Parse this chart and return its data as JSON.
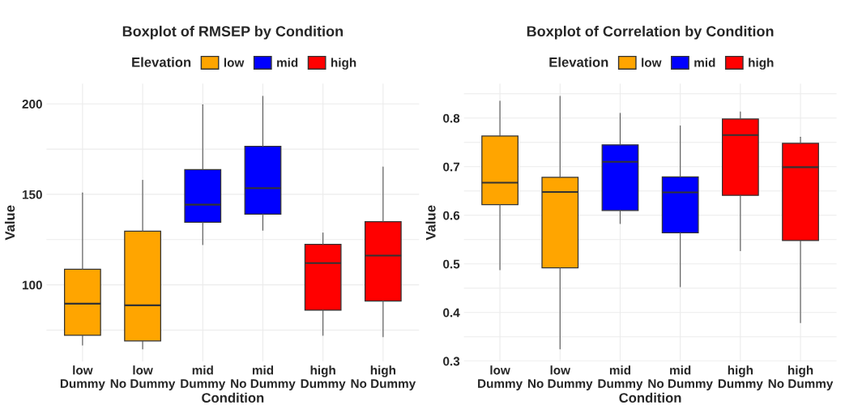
{
  "chart_data": [
    {
      "type": "box",
      "title": "Boxplot of RMSEP by Condition",
      "xlabel": "Condition",
      "ylabel": "Value",
      "legend_title": "Elevation",
      "legend": "top",
      "grid": true,
      "categories": [
        "low\nDummy",
        "low\nNo Dummy",
        "mid\nDummy",
        "mid\nNo Dummy",
        "high\nDummy",
        "high\nNo Dummy"
      ],
      "ylim": [
        57.6,
        211.2
      ],
      "yticks": [
        {
          "value": 75,
          "label": null
        },
        100,
        {
          "value": 125,
          "label": null
        },
        150,
        {
          "value": 175,
          "label": null
        },
        200
      ],
      "series": [
        {
          "name": "low",
          "color": "#ffa500",
          "boxes": [
            {
              "low": 66.7,
              "q1": 72.1,
              "median": 89.6,
              "q3": 108.6,
              "high": 150.8
            },
            {
              "low": 64.6,
              "q1": 69.0,
              "median": 88.7,
              "q3": 129.6,
              "high": 157.8
            },
            null,
            null,
            null,
            null
          ]
        },
        {
          "name": "mid",
          "color": "#0000ff",
          "boxes": [
            null,
            null,
            {
              "low": 122.2,
              "q1": 134.6,
              "median": 144.3,
              "q3": 163.7,
              "high": 199.5
            },
            {
              "low": 130.2,
              "q1": 139.1,
              "median": 153.4,
              "q3": 176.5,
              "high": 204.2
            },
            null,
            null
          ]
        },
        {
          "name": "high",
          "color": "#ff0000",
          "boxes": [
            null,
            null,
            null,
            null,
            {
              "low": 72.1,
              "q1": 86.0,
              "median": 112.0,
              "q3": 122.4,
              "high": 128.7
            },
            {
              "low": 71.3,
              "q1": 91.1,
              "median": 116.2,
              "q3": 134.9,
              "high": 165.2
            }
          ]
        }
      ]
    },
    {
      "type": "box",
      "title": "Boxplot of Correlation by Condition",
      "xlabel": "Condition",
      "ylabel": "Value",
      "legend_title": "Elevation",
      "legend": "top",
      "grid": true,
      "categories": [
        "low\nDummy",
        "low\nNo Dummy",
        "mid\nDummy",
        "mid\nNo Dummy",
        "high\nDummy",
        "high\nNo Dummy"
      ],
      "ylim": [
        0.299,
        0.871
      ],
      "yticks": [
        0.3,
        {
          "value": 0.35,
          "label": null
        },
        0.4,
        {
          "value": 0.45,
          "label": null
        },
        0.5,
        {
          "value": 0.55,
          "label": null
        },
        0.6,
        {
          "value": 0.65,
          "label": null
        },
        0.7,
        {
          "value": 0.75,
          "label": null
        },
        0.8,
        {
          "value": 0.85,
          "label": null
        }
      ],
      "series": [
        {
          "name": "low",
          "color": "#ffa500",
          "boxes": [
            {
              "low": 0.488,
              "q1": 0.622,
              "median": 0.667,
              "q3": 0.763,
              "high": 0.835
            },
            {
              "low": 0.325,
              "q1": 0.492,
              "median": 0.648,
              "q3": 0.678,
              "high": 0.845
            },
            null,
            null,
            null,
            null
          ]
        },
        {
          "name": "mid",
          "color": "#0000ff",
          "boxes": [
            null,
            null,
            {
              "low": 0.583,
              "q1": 0.61,
              "median": 0.71,
              "q3": 0.745,
              "high": 0.81
            },
            {
              "low": 0.453,
              "q1": 0.564,
              "median": 0.647,
              "q3": 0.679,
              "high": 0.784
            },
            null,
            null
          ]
        },
        {
          "name": "high",
          "color": "#ff0000",
          "boxes": [
            null,
            null,
            null,
            null,
            {
              "low": 0.527,
              "q1": 0.641,
              "median": 0.765,
              "q3": 0.798,
              "high": 0.813
            },
            {
              "low": 0.379,
              "q1": 0.548,
              "median": 0.699,
              "q3": 0.748,
              "high": 0.761
            }
          ]
        }
      ]
    }
  ]
}
